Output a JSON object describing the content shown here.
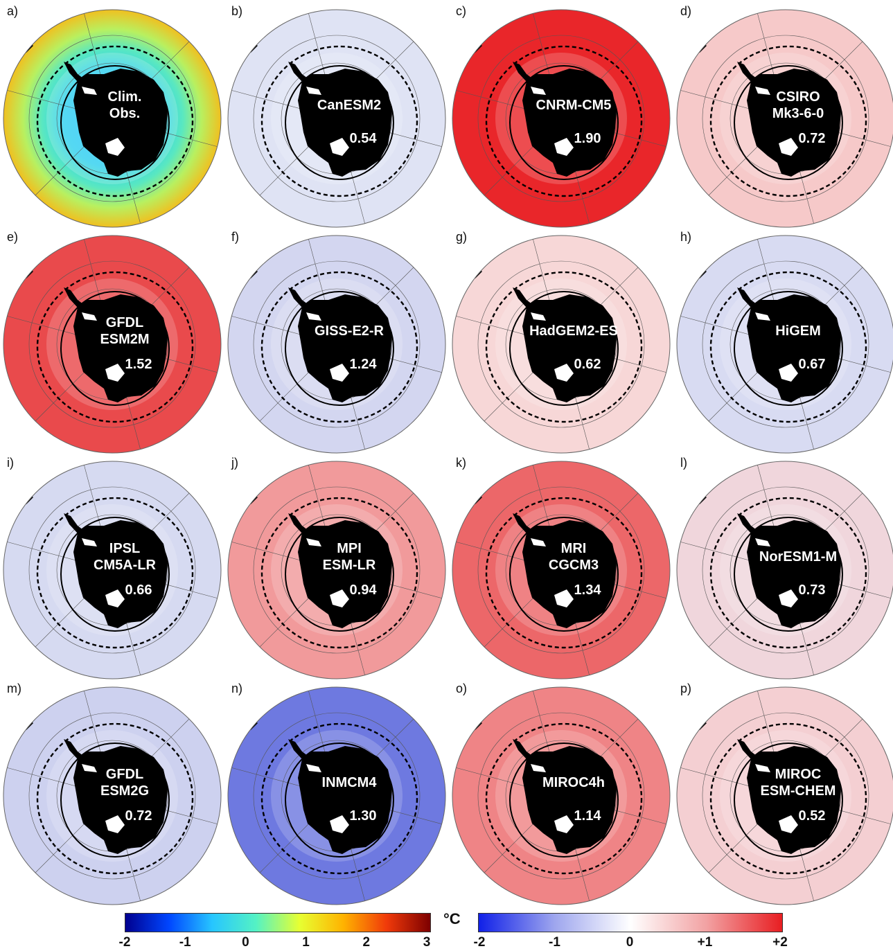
{
  "panels": [
    {
      "letter": "a)",
      "name_lines": [
        "Clim.",
        "Obs."
      ],
      "rmse": "",
      "fill": "obs"
    },
    {
      "letter": "b)",
      "name_lines": [
        "CanESM2"
      ],
      "rmse": "0.54",
      "fill": "#dfe3f4"
    },
    {
      "letter": "c)",
      "name_lines": [
        "CNRM-CM5"
      ],
      "rmse": "1.90",
      "fill": "#e9262a"
    },
    {
      "letter": "d)",
      "name_lines": [
        "CSIRO",
        "Mk3-6-0"
      ],
      "rmse": "0.72",
      "fill": "#f6c9c9"
    },
    {
      "letter": "e)",
      "name_lines": [
        "GFDL",
        "ESM2M"
      ],
      "rmse": "1.52",
      "fill": "#e94a4c"
    },
    {
      "letter": "f)",
      "name_lines": [
        "GISS-E2-R"
      ],
      "rmse": "1.24",
      "fill": "#d3d6f0"
    },
    {
      "letter": "g)",
      "name_lines": [
        "HadGEM2-ES"
      ],
      "rmse": "0.62",
      "fill": "#f7d7d7"
    },
    {
      "letter": "h)",
      "name_lines": [
        "HiGEM"
      ],
      "rmse": "0.67",
      "fill": "#d8dbf2"
    },
    {
      "letter": "i)",
      "name_lines": [
        "IPSL",
        "CM5A-LR"
      ],
      "rmse": "0.66",
      "fill": "#d6daf1"
    },
    {
      "letter": "j)",
      "name_lines": [
        "MPI",
        "ESM-LR"
      ],
      "rmse": "0.94",
      "fill": "#f19a9b"
    },
    {
      "letter": "k)",
      "name_lines": [
        "MRI",
        "CGCM3"
      ],
      "rmse": "1.34",
      "fill": "#ec6769"
    },
    {
      "letter": "l)",
      "name_lines": [
        "NorESM1-M"
      ],
      "rmse": "0.73",
      "fill": "#f0d6dc"
    },
    {
      "letter": "m)",
      "name_lines": [
        "GFDL",
        "ESM2G"
      ],
      "rmse": "0.72",
      "fill": "#cdd1ef"
    },
    {
      "letter": "n)",
      "name_lines": [
        "INMCM4"
      ],
      "rmse": "1.30",
      "fill": "#6e79e0"
    },
    {
      "letter": "o)",
      "name_lines": [
        "MIROC4h"
      ],
      "rmse": "1.14",
      "fill": "#ef8486"
    },
    {
      "letter": "p)",
      "name_lines": [
        "MIROC",
        "ESM-CHEM"
      ],
      "rmse": "0.52",
      "fill": "#f4cfd2"
    }
  ],
  "colorbars": {
    "unit": "°C",
    "climatology": {
      "ticks": [
        "-2",
        "-1",
        "0",
        "1",
        "2",
        "3"
      ],
      "colors": [
        "#00008f",
        "#0046ff",
        "#27c6ff",
        "#54f2c4",
        "#e7ff32",
        "#ffb300",
        "#f03a0a",
        "#7d0000"
      ]
    },
    "anomaly": {
      "ticks": [
        "-2",
        "-1",
        "0",
        "+1",
        "+2"
      ],
      "colors": [
        "#1020e8",
        "#9ea6ee",
        "#ffffff",
        "#f2a2a3",
        "#e81e22"
      ]
    }
  }
}
